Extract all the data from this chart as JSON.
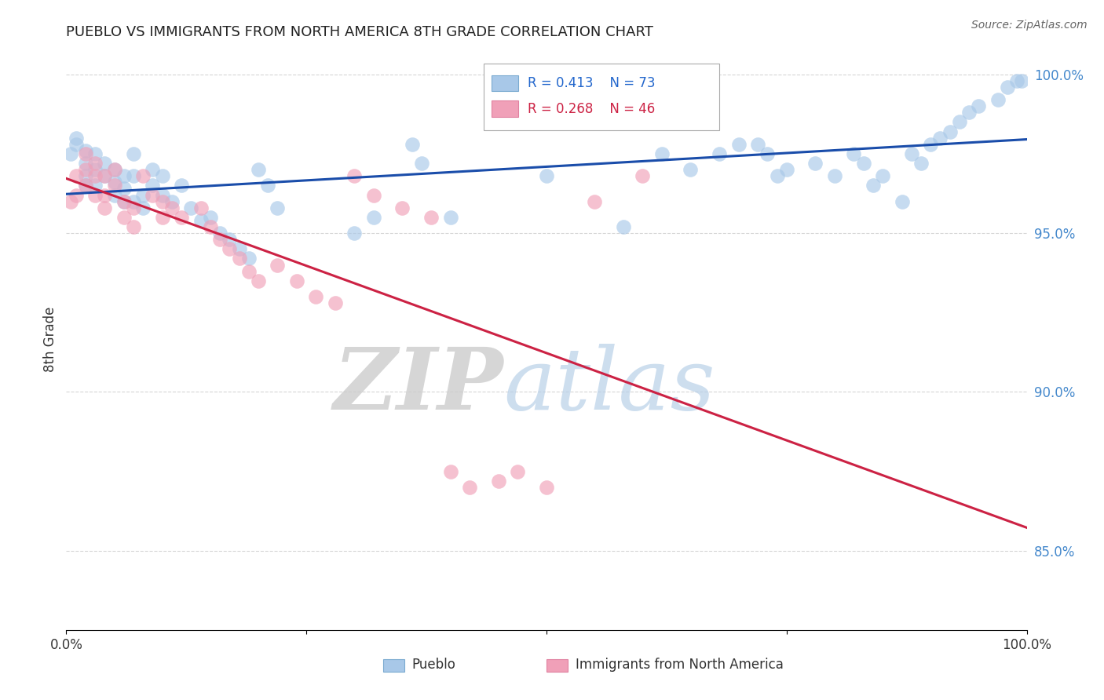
{
  "title": "PUEBLO VS IMMIGRANTS FROM NORTH AMERICA 8TH GRADE CORRELATION CHART",
  "source_text": "Source: ZipAtlas.com",
  "ylabel": "8th Grade",
  "xlim": [
    0.0,
    1.0
  ],
  "ylim": [
    0.825,
    1.008
  ],
  "yticks": [
    0.85,
    0.9,
    0.95,
    1.0
  ],
  "ytick_labels": [
    "85.0%",
    "90.0%",
    "95.0%",
    "100.0%"
  ],
  "blue_label": "Pueblo",
  "pink_label": "Immigrants from North America",
  "blue_color": "#a8c8e8",
  "pink_color": "#f0a0b8",
  "blue_line_color": "#1a4daa",
  "pink_line_color": "#cc2244",
  "legend_R_blue": "R = 0.413",
  "legend_N_blue": "N = 73",
  "legend_R_pink": "R = 0.268",
  "legend_N_pink": "N = 46",
  "blue_x": [
    0.005,
    0.01,
    0.01,
    0.02,
    0.02,
    0.02,
    0.02,
    0.03,
    0.03,
    0.03,
    0.04,
    0.04,
    0.05,
    0.05,
    0.05,
    0.06,
    0.06,
    0.06,
    0.07,
    0.07,
    0.07,
    0.08,
    0.08,
    0.09,
    0.09,
    0.1,
    0.1,
    0.11,
    0.12,
    0.13,
    0.14,
    0.15,
    0.16,
    0.17,
    0.18,
    0.19,
    0.2,
    0.21,
    0.22,
    0.3,
    0.32,
    0.36,
    0.37,
    0.4,
    0.5,
    0.58,
    0.62,
    0.65,
    0.68,
    0.7,
    0.72,
    0.73,
    0.74,
    0.75,
    0.78,
    0.8,
    0.82,
    0.83,
    0.84,
    0.85,
    0.87,
    0.88,
    0.89,
    0.9,
    0.91,
    0.92,
    0.93,
    0.94,
    0.95,
    0.97,
    0.98,
    0.99,
    0.995
  ],
  "blue_y": [
    0.975,
    0.98,
    0.978,
    0.976,
    0.972,
    0.968,
    0.965,
    0.975,
    0.97,
    0.965,
    0.972,
    0.968,
    0.97,
    0.966,
    0.962,
    0.968,
    0.964,
    0.96,
    0.975,
    0.968,
    0.96,
    0.962,
    0.958,
    0.97,
    0.965,
    0.968,
    0.962,
    0.96,
    0.965,
    0.958,
    0.954,
    0.955,
    0.95,
    0.948,
    0.945,
    0.942,
    0.97,
    0.965,
    0.958,
    0.95,
    0.955,
    0.978,
    0.972,
    0.955,
    0.968,
    0.952,
    0.975,
    0.97,
    0.975,
    0.978,
    0.978,
    0.975,
    0.968,
    0.97,
    0.972,
    0.968,
    0.975,
    0.972,
    0.965,
    0.968,
    0.96,
    0.975,
    0.972,
    0.978,
    0.98,
    0.982,
    0.985,
    0.988,
    0.99,
    0.992,
    0.996,
    0.998,
    0.998
  ],
  "pink_x": [
    0.005,
    0.01,
    0.01,
    0.02,
    0.02,
    0.02,
    0.03,
    0.03,
    0.03,
    0.04,
    0.04,
    0.04,
    0.05,
    0.05,
    0.06,
    0.06,
    0.07,
    0.07,
    0.08,
    0.09,
    0.1,
    0.1,
    0.11,
    0.12,
    0.14,
    0.15,
    0.16,
    0.17,
    0.18,
    0.19,
    0.2,
    0.22,
    0.24,
    0.26,
    0.28,
    0.3,
    0.32,
    0.35,
    0.38,
    0.4,
    0.42,
    0.45,
    0.47,
    0.5,
    0.55,
    0.6
  ],
  "pink_y": [
    0.96,
    0.968,
    0.962,
    0.975,
    0.97,
    0.965,
    0.972,
    0.968,
    0.962,
    0.968,
    0.962,
    0.958,
    0.97,
    0.965,
    0.96,
    0.955,
    0.958,
    0.952,
    0.968,
    0.962,
    0.96,
    0.955,
    0.958,
    0.955,
    0.958,
    0.952,
    0.948,
    0.945,
    0.942,
    0.938,
    0.935,
    0.94,
    0.935,
    0.93,
    0.928,
    0.968,
    0.962,
    0.958,
    0.955,
    0.875,
    0.87,
    0.872,
    0.875,
    0.87,
    0.96,
    0.968
  ]
}
